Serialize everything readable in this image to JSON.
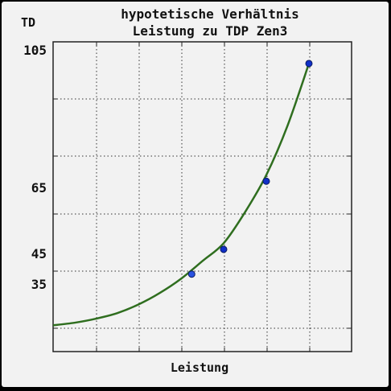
{
  "chart_data": {
    "type": "line",
    "title": [
      "hypotetische Verhältnis",
      "Leistung zu TDP Zen3"
    ],
    "xlabel": "Leistung",
    "ylabel": "TD",
    "y_tick_labels": [
      {
        "value": 105,
        "label": "105"
      },
      {
        "value": 65,
        "label": "65"
      },
      {
        "value": 45,
        "label": "45"
      },
      {
        "value": 35,
        "label": "35"
      }
    ],
    "x_tick_labels": [],
    "ylim": [
      10,
      110
    ],
    "xlim": [
      0,
      7
    ],
    "grid": true,
    "series": [
      {
        "color": "#2f6e1f",
        "x": [
          0,
          0.5,
          1,
          1.5,
          2,
          2.5,
          3,
          3.5,
          4,
          4.5,
          5,
          5.5,
          6
        ],
        "values": [
          18.5,
          19.3,
          20.6,
          22.4,
          25.2,
          28.9,
          33.5,
          39.2,
          45,
          55,
          67,
          83,
          103
        ]
      }
    ],
    "markers": [
      {
        "x": 3.25,
        "y": 35,
        "color": "#2a52e0"
      },
      {
        "x": 4,
        "y": 43,
        "color": "#1030c8"
      },
      {
        "x": 5,
        "y": 65,
        "color": "#1030c8"
      },
      {
        "x": 6,
        "y": 103,
        "color": "#1030c8"
      }
    ]
  }
}
